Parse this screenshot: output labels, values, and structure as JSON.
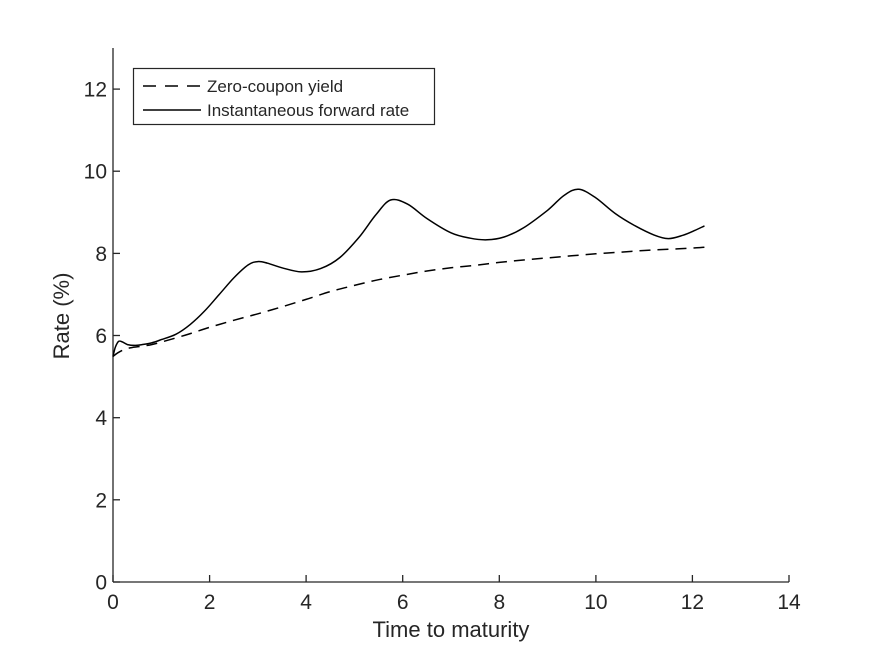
{
  "figure": {
    "background": "#ffffff",
    "axis_color": "#262626",
    "curve_color": "#000000"
  },
  "chart_data": {
    "type": "line",
    "title": "",
    "xlabel": "Time to maturity",
    "ylabel": "Rate (%)",
    "xlim": [
      0,
      14
    ],
    "ylim": [
      0,
      13
    ],
    "xticks": [
      0,
      2,
      4,
      6,
      8,
      10,
      12,
      14
    ],
    "yticks": [
      0,
      2,
      4,
      6,
      8,
      10,
      12
    ],
    "grid": false,
    "box": false,
    "legend_position": "top-left-inside",
    "series": [
      {
        "name": "Zero-coupon yield",
        "style": "dashed",
        "color": "#000000",
        "points": [
          [
            0,
            5.49
          ],
          [
            0.1,
            5.58
          ],
          [
            0.25,
            5.67
          ],
          [
            0.4,
            5.71
          ],
          [
            0.6,
            5.74
          ],
          [
            0.8,
            5.78
          ],
          [
            1.0,
            5.84
          ],
          [
            1.5,
            6.01
          ],
          [
            2.0,
            6.2
          ],
          [
            2.5,
            6.37
          ],
          [
            3.0,
            6.53
          ],
          [
            3.5,
            6.7
          ],
          [
            4.0,
            6.88
          ],
          [
            4.5,
            7.07
          ],
          [
            5.0,
            7.22
          ],
          [
            5.5,
            7.36
          ],
          [
            6.0,
            7.47
          ],
          [
            6.5,
            7.57
          ],
          [
            7.0,
            7.65
          ],
          [
            7.5,
            7.71
          ],
          [
            8.0,
            7.78
          ],
          [
            8.5,
            7.84
          ],
          [
            9.0,
            7.89
          ],
          [
            9.5,
            7.94
          ],
          [
            10.0,
            7.99
          ],
          [
            10.5,
            8.03
          ],
          [
            11.0,
            8.07
          ],
          [
            11.5,
            8.1
          ],
          [
            12.0,
            8.13
          ],
          [
            12.25,
            8.15
          ]
        ]
      },
      {
        "name": "Instantaneous forward rate",
        "style": "solid",
        "color": "#000000",
        "points": [
          [
            0,
            5.49
          ],
          [
            0.05,
            5.72
          ],
          [
            0.12,
            5.86
          ],
          [
            0.2,
            5.84
          ],
          [
            0.3,
            5.78
          ],
          [
            0.45,
            5.76
          ],
          [
            0.6,
            5.78
          ],
          [
            0.8,
            5.82
          ],
          [
            1.0,
            5.9
          ],
          [
            1.3,
            6.03
          ],
          [
            1.6,
            6.27
          ],
          [
            1.9,
            6.6
          ],
          [
            2.2,
            7.0
          ],
          [
            2.5,
            7.4
          ],
          [
            2.8,
            7.72
          ],
          [
            3.0,
            7.8
          ],
          [
            3.2,
            7.76
          ],
          [
            3.5,
            7.65
          ],
          [
            3.9,
            7.55
          ],
          [
            4.3,
            7.63
          ],
          [
            4.7,
            7.9
          ],
          [
            5.1,
            8.4
          ],
          [
            5.45,
            8.95
          ],
          [
            5.75,
            9.3
          ],
          [
            6.1,
            9.2
          ],
          [
            6.5,
            8.85
          ],
          [
            7.0,
            8.5
          ],
          [
            7.4,
            8.37
          ],
          [
            7.75,
            8.33
          ],
          [
            8.1,
            8.4
          ],
          [
            8.5,
            8.62
          ],
          [
            9.0,
            9.05
          ],
          [
            9.35,
            9.42
          ],
          [
            9.65,
            9.56
          ],
          [
            10.0,
            9.35
          ],
          [
            10.4,
            8.97
          ],
          [
            10.8,
            8.68
          ],
          [
            11.2,
            8.45
          ],
          [
            11.5,
            8.36
          ],
          [
            11.8,
            8.44
          ],
          [
            12.05,
            8.56
          ],
          [
            12.25,
            8.67
          ]
        ]
      }
    ]
  }
}
